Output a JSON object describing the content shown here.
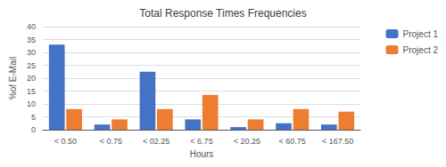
{
  "chart_data": {
    "type": "bar",
    "title": "Total Response Times Frequencies",
    "xlabel": "Hours",
    "ylabel": "%of E-Mail",
    "categories": [
      "< 0.50",
      "< 0.75",
      "< 02.25",
      "< 6.75",
      "< 20.25",
      "< 60.75",
      "< 167.50"
    ],
    "series": [
      {
        "name": "Project 1",
        "color": "#4472C4",
        "values": [
          33,
          2,
          22.5,
          4,
          1,
          2.5,
          2
        ]
      },
      {
        "name": "Project 2",
        "color": "#ED7D31",
        "values": [
          8,
          4,
          8,
          13.5,
          4,
          8,
          7
        ]
      }
    ],
    "ylim": [
      0,
      40
    ],
    "yticks": [
      0,
      5,
      10,
      15,
      20,
      25,
      30,
      35,
      40
    ],
    "grid": true,
    "legend": "upper right"
  }
}
